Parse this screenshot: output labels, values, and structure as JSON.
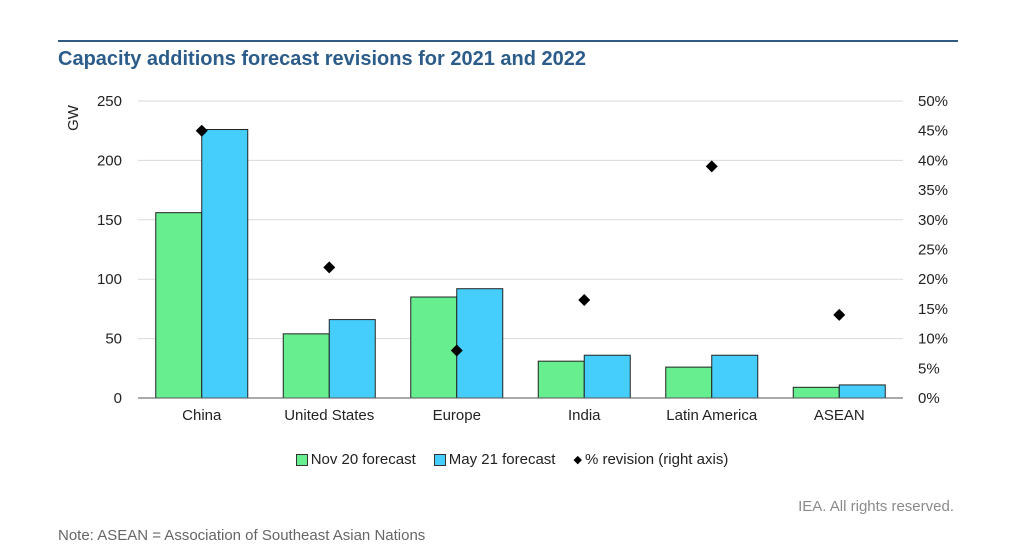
{
  "page": {
    "source": "IEA. All rights reserved.",
    "note": "Note: ASEAN = Association of Southeast Asian Nations"
  },
  "colors": {
    "series_nov": "#66ee8f",
    "series_may": "#45cdfc",
    "revision": "#000000",
    "title": "#2b5c8a",
    "grid": "#d9d9d9"
  },
  "chart_data": {
    "type": "bar",
    "title": "Capacity additions forecast revisions for 2021 and 2022",
    "ylabel": "GW",
    "y2label": "",
    "categories": [
      "China",
      "United States",
      "Europe",
      "India",
      "Latin America",
      "ASEAN"
    ],
    "series": [
      {
        "name": "Nov 20 forecast",
        "type": "bar",
        "axis": "left",
        "values": [
          156,
          54,
          85,
          31,
          26,
          9
        ]
      },
      {
        "name": "May 21 forecast",
        "type": "bar",
        "axis": "left",
        "values": [
          226,
          66,
          92,
          36,
          36,
          11
        ]
      },
      {
        "name": "% revision (right axis)",
        "type": "scatter",
        "axis": "right",
        "marker": "diamond",
        "values": [
          45,
          22,
          8,
          16.5,
          39,
          14
        ]
      }
    ],
    "ylim": [
      0,
      250
    ],
    "y2lim": [
      0,
      50
    ],
    "yticks": [
      "0",
      "50",
      "100",
      "150",
      "200",
      "250"
    ],
    "y2ticks": [
      "0%",
      "5%",
      "10%",
      "15%",
      "20%",
      "25%",
      "30%",
      "35%",
      "40%",
      "45%",
      "50%"
    ],
    "grid": true,
    "legend": "bottom"
  }
}
